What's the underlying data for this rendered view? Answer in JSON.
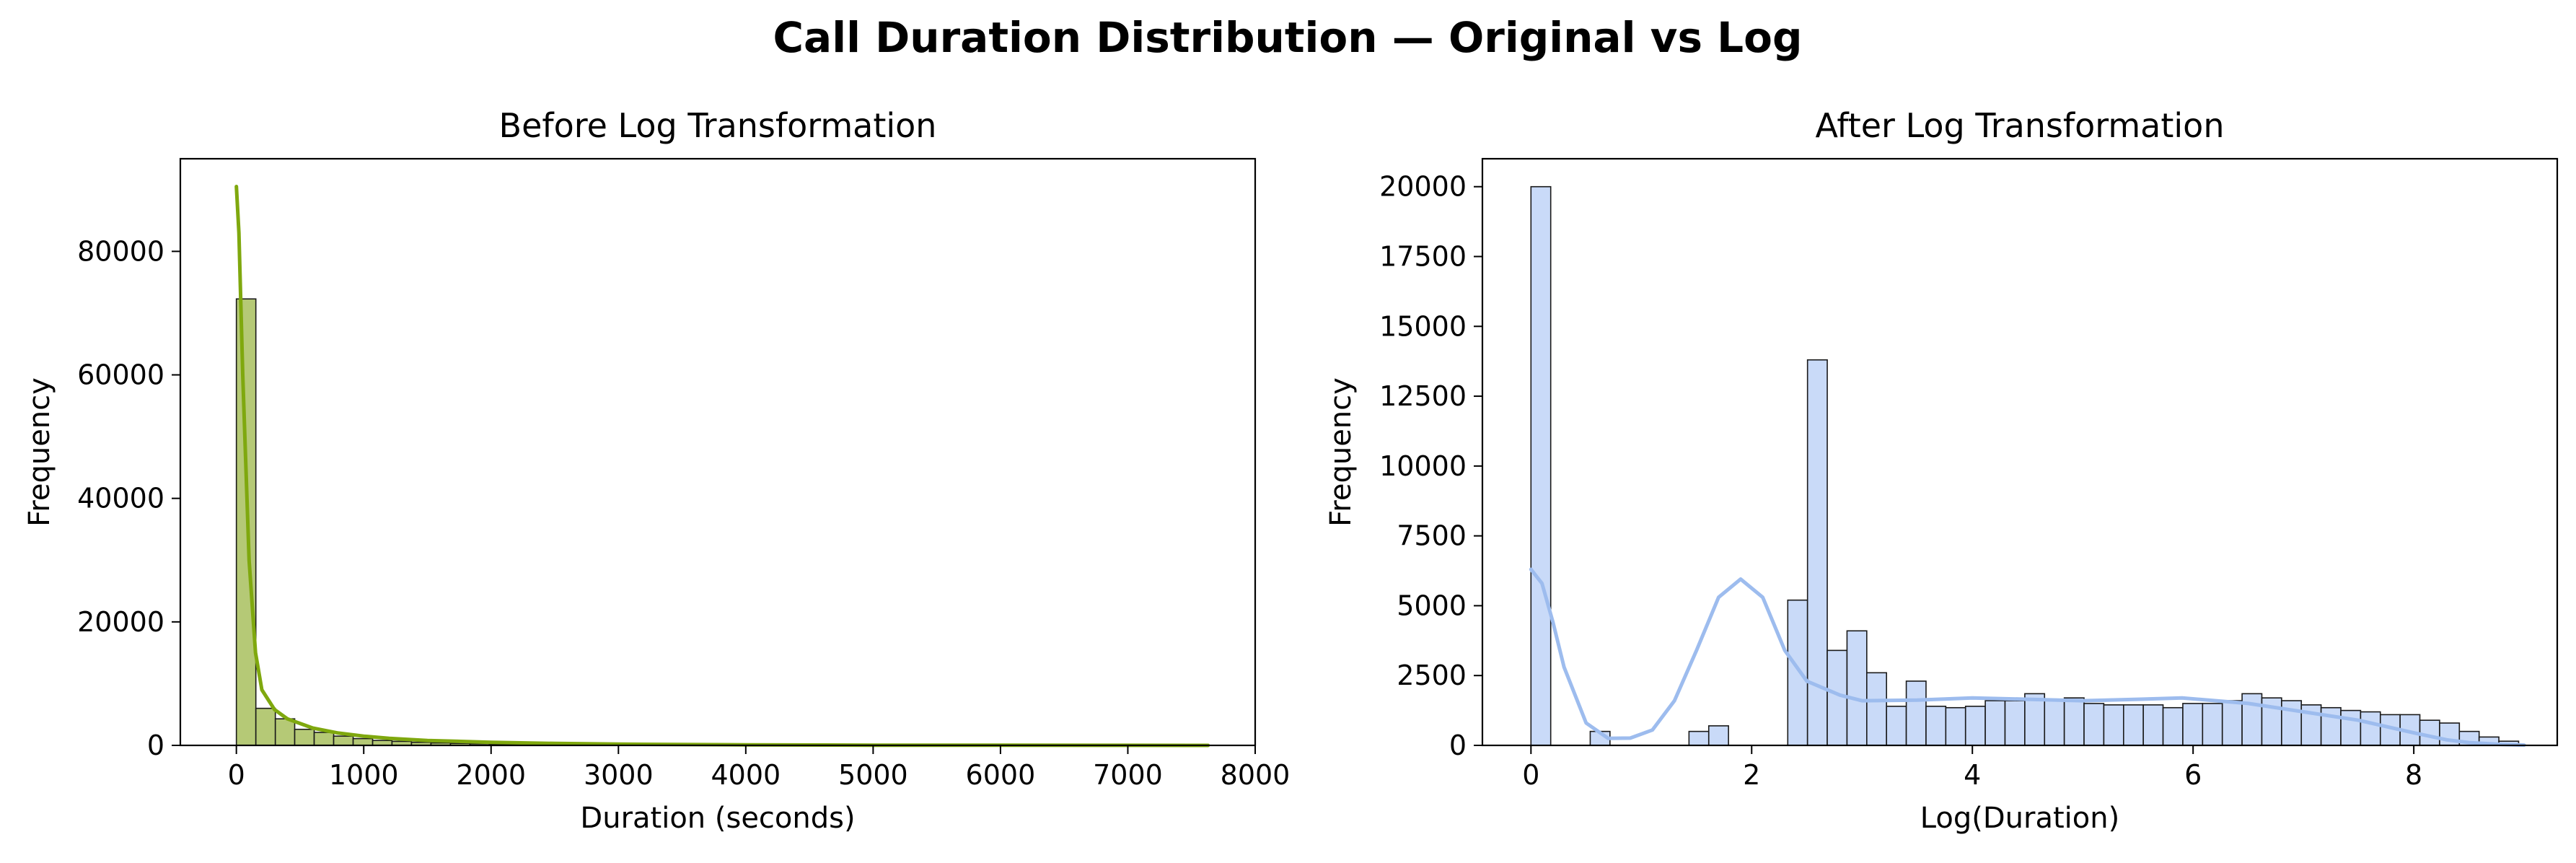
{
  "suptitle": "Call Duration Distribution — Original vs Log",
  "chart_data": [
    {
      "type": "bar",
      "title": "Before Log Transformation",
      "xlabel": "Duration (seconds)",
      "ylabel": "Frequency",
      "xlim": [
        -440,
        8000
      ],
      "ylim": [
        0,
        95000
      ],
      "xticks": [
        0,
        1000,
        2000,
        3000,
        4000,
        5000,
        6000,
        7000,
        8000
      ],
      "yticks": [
        0,
        20000,
        40000,
        60000,
        80000
      ],
      "bar_color": "#b5c976",
      "line_color": "#7fa80e",
      "bins": [
        {
          "x0": 0,
          "x1": 153,
          "count": 72300
        },
        {
          "x0": 153,
          "x1": 306,
          "count": 6000
        },
        {
          "x0": 306,
          "x1": 458,
          "count": 4300
        },
        {
          "x0": 458,
          "x1": 611,
          "count": 2600
        },
        {
          "x0": 611,
          "x1": 764,
          "count": 2100
        },
        {
          "x0": 764,
          "x1": 917,
          "count": 1500
        },
        {
          "x0": 917,
          "x1": 1070,
          "count": 1100
        },
        {
          "x0": 1070,
          "x1": 1222,
          "count": 800
        },
        {
          "x0": 1222,
          "x1": 1375,
          "count": 650
        },
        {
          "x0": 1375,
          "x1": 1528,
          "count": 500
        },
        {
          "x0": 1528,
          "x1": 1681,
          "count": 400
        },
        {
          "x0": 1681,
          "x1": 1834,
          "count": 320
        },
        {
          "x0": 1834,
          "x1": 1986,
          "count": 260
        },
        {
          "x0": 1986,
          "x1": 2139,
          "count": 200
        },
        {
          "x0": 2139,
          "x1": 2292,
          "count": 160
        },
        {
          "x0": 2292,
          "x1": 2445,
          "count": 130
        },
        {
          "x0": 2445,
          "x1": 2598,
          "count": 100
        },
        {
          "x0": 2598,
          "x1": 2750,
          "count": 80
        },
        {
          "x0": 2750,
          "x1": 2903,
          "count": 60
        },
        {
          "x0": 2903,
          "x1": 3056,
          "count": 50
        }
      ],
      "kde": {
        "x": [
          0,
          20,
          50,
          100,
          150,
          200,
          300,
          400,
          600,
          800,
          1000,
          1200,
          1500,
          2000,
          2500,
          3000,
          4000,
          5000,
          6000,
          7000,
          7630
        ],
        "y": [
          90500,
          83000,
          60000,
          30000,
          15000,
          9000,
          5800,
          4300,
          2800,
          2000,
          1500,
          1150,
          800,
          500,
          320,
          200,
          90,
          40,
          20,
          10,
          5
        ]
      }
    },
    {
      "type": "bar",
      "title": "After Log Transformation",
      "xlabel": "Log(Duration)",
      "ylabel": "Frequency",
      "xlim": [
        -0.44,
        9.3
      ],
      "ylim": [
        0,
        21000
      ],
      "xticks": [
        0,
        2,
        4,
        6,
        8
      ],
      "yticks": [
        0,
        2500,
        5000,
        7500,
        10000,
        12500,
        15000,
        17500,
        20000
      ],
      "bar_color": "#c9daf8",
      "line_color": "#9dbcee",
      "bin_width": 0.179,
      "counts": [
        20000,
        0,
        0,
        500,
        0,
        0,
        0,
        0,
        500,
        700,
        0,
        0,
        0,
        5200,
        13800,
        3400,
        4100,
        2600,
        1400,
        2300,
        1400,
        1350,
        1400,
        1600,
        1600,
        1850,
        1650,
        1700,
        1500,
        1450,
        1450,
        1450,
        1350,
        1500,
        1500,
        1600,
        1850,
        1700,
        1600,
        1450,
        1350,
        1250,
        1200,
        1100,
        1100,
        900,
        800,
        500,
        300,
        150
      ],
      "kde": {
        "x": [
          0,
          0.1,
          0.2,
          0.3,
          0.5,
          0.7,
          0.9,
          1.1,
          1.3,
          1.5,
          1.7,
          1.9,
          2.1,
          2.3,
          2.5,
          2.8,
          3.0,
          3.5,
          4.0,
          4.5,
          5.0,
          5.5,
          5.9,
          6.5,
          7.0,
          7.5,
          8.0,
          8.3,
          8.5,
          8.8,
          9.0
        ],
        "y": [
          6300,
          5800,
          4400,
          2800,
          800,
          250,
          260,
          550,
          1600,
          3400,
          5300,
          5950,
          5300,
          3400,
          2300,
          1800,
          1600,
          1620,
          1700,
          1650,
          1600,
          1650,
          1700,
          1500,
          1200,
          900,
          450,
          200,
          100,
          30,
          10
        ]
      }
    }
  ]
}
